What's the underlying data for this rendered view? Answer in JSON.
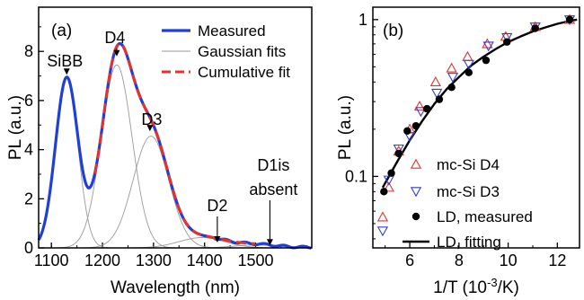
{
  "chart_data": [
    {
      "panel_label": "(a)",
      "type": "line",
      "xlabel": "Wavelength (nm)",
      "ylabel": "PL (a.u.)",
      "xlim": [
        1075,
        1610
      ],
      "ylim": [
        0,
        9.8
      ],
      "x_ticks": [
        1100,
        1200,
        1300,
        1400,
        1500
      ],
      "y_ticks": [
        0,
        2,
        4,
        6,
        8
      ],
      "gaussian_peaks": [
        {
          "center": 1130,
          "amplitude": 6.9,
          "sigma": 22
        },
        {
          "center": 1228,
          "amplitude": 7.45,
          "sigma": 30
        },
        {
          "center": 1295,
          "amplitude": 4.55,
          "sigma": 35
        },
        {
          "center": 1395,
          "amplitude": 0.42,
          "sigma": 45
        },
        {
          "center": 1500,
          "amplitude": 0.12,
          "sigma": 42
        }
      ],
      "series": [
        {
          "name": "Measured",
          "style": "solid",
          "color": "#1f3fd6"
        },
        {
          "name": "Gaussian fits",
          "style": "thin",
          "color": "#9a9a9a"
        },
        {
          "name": "Cumulative fit",
          "style": "dashed",
          "color": "#e8312b"
        }
      ],
      "annotations": [
        {
          "text": "SiBB",
          "x": 1130,
          "y": 7.05
        },
        {
          "text": "D4",
          "x": 1228,
          "y": 7.8
        },
        {
          "text": "D3",
          "x": 1293,
          "y": 4.75
        },
        {
          "text": "D2",
          "x": 1425,
          "y": 0.22
        },
        {
          "text": "D1is",
          "x": 1528,
          "y": 0.1
        },
        {
          "text": "absent",
          "x": 1528,
          "y": 0.1
        }
      ]
    },
    {
      "panel_label": "(b)",
      "type": "scatter",
      "xlabel": "1/T (10",
      "xlabel_sup": "-3",
      "xlabel_tail": "/K)",
      "ylabel": "PL (a.u.)",
      "yscale": "log",
      "xlim": [
        4.5,
        12.9
      ],
      "ylim": [
        0.035,
        1.2
      ],
      "x_ticks": [
        6,
        8,
        10,
        12
      ],
      "y_ticks": [
        0.1,
        1
      ],
      "y_tick_labels": [
        "0.1",
        "1"
      ],
      "series": [
        {
          "name": "mc-Si D4",
          "marker": "triangle-up",
          "color": "#e8312b",
          "x": [
            4.9,
            5.15,
            5.55,
            6.0,
            6.4,
            7.05,
            7.7,
            8.35,
            9.15,
            9.9,
            11.1,
            12.5
          ],
          "y": [
            0.055,
            0.085,
            0.145,
            0.2,
            0.28,
            0.4,
            0.49,
            0.58,
            0.7,
            0.78,
            0.9,
            1.0
          ]
        },
        {
          "name": "mc-Si D3",
          "marker": "triangle-down",
          "color": "#2f3fd6",
          "x": [
            4.9,
            5.15,
            5.55,
            6.0,
            6.45,
            7.1,
            7.75,
            8.4,
            9.2,
            9.95,
            11.1,
            12.5
          ],
          "y": [
            0.045,
            0.095,
            0.15,
            0.18,
            0.26,
            0.34,
            0.43,
            0.52,
            0.68,
            0.77,
            0.9,
            1.0
          ]
        },
        {
          "name": "LD, measured",
          "marker": "circle",
          "color": "#000000",
          "x": [
            4.95,
            5.25,
            5.55,
            5.9,
            6.25,
            6.7,
            7.2,
            7.7,
            8.4,
            9.1,
            9.95,
            11.1,
            12.5
          ],
          "y": [
            0.08,
            0.105,
            0.14,
            0.195,
            0.21,
            0.27,
            0.31,
            0.37,
            0.46,
            0.55,
            0.72,
            0.88,
            1.0
          ]
        },
        {
          "name": "LD, fitting",
          "marker": "line",
          "color": "#000000",
          "x": [
            4.9,
            5.5,
            6.0,
            6.5,
            7.0,
            7.5,
            8.0,
            8.5,
            9.0,
            9.5,
            10.0,
            10.5,
            11.0,
            11.5,
            12.0,
            12.5,
            12.8
          ],
          "y": [
            0.085,
            0.125,
            0.17,
            0.225,
            0.29,
            0.36,
            0.43,
            0.51,
            0.58,
            0.65,
            0.72,
            0.78,
            0.84,
            0.89,
            0.94,
            0.98,
            1.0
          ]
        }
      ]
    }
  ]
}
